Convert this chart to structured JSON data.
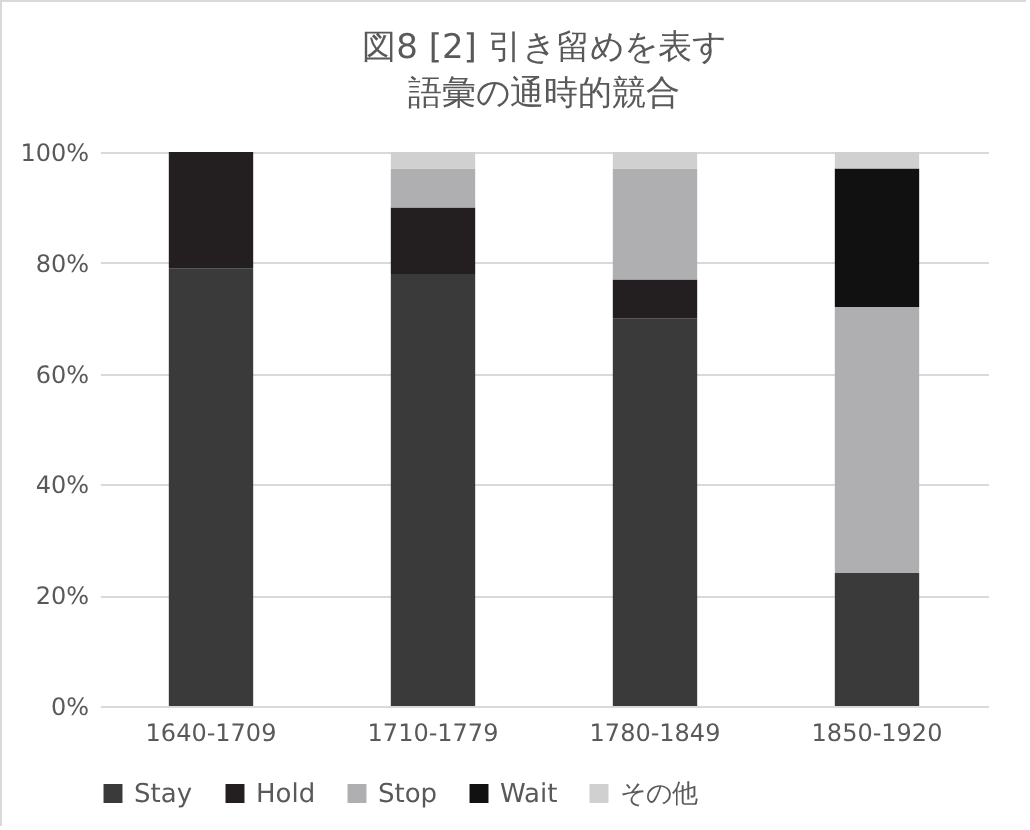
{
  "chart_data": {
    "type": "bar",
    "stacked": true,
    "title": "図8 [2] 引き留めを表す",
    "subtitle": "語彙の通時的競合",
    "categories": [
      "1640-1709",
      "1710-1779",
      "1780-1849",
      "1850-1920"
    ],
    "series": [
      {
        "name": "Stay",
        "color": "#3a3a3a",
        "values": [
          79,
          78,
          70,
          24
        ]
      },
      {
        "name": "Hold",
        "color": "#231f20",
        "values": [
          21,
          12,
          7,
          0
        ]
      },
      {
        "name": "Stop",
        "color": "#afafb1",
        "values": [
          0,
          7,
          20,
          48
        ]
      },
      {
        "name": "Wait",
        "color": "#111111",
        "values": [
          0,
          0,
          0,
          25
        ]
      },
      {
        "name": "その他",
        "color": "#d0d0d0",
        "values": [
          0,
          3,
          3,
          3
        ]
      }
    ],
    "ylim": [
      0,
      100
    ],
    "yticks": [
      {
        "value": 0,
        "label": "0%"
      },
      {
        "value": 20,
        "label": "20%"
      },
      {
        "value": 40,
        "label": "40%"
      },
      {
        "value": 60,
        "label": "60%"
      },
      {
        "value": 80,
        "label": "80%"
      },
      {
        "value": 100,
        "label": "100%"
      }
    ],
    "grid": "y",
    "legend": "bottom"
  }
}
